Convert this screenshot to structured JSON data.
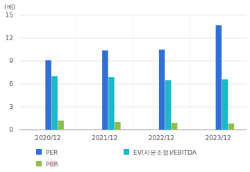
{
  "chart_data": {
    "type": "bar",
    "y_label": "(배)",
    "categories": [
      "2020/12",
      "2021/12",
      "2022/12",
      "2023/12"
    ],
    "series": [
      {
        "name": "PER",
        "color": "#2f6fd6",
        "values": [
          9.1,
          10.4,
          10.5,
          13.7
        ]
      },
      {
        "name": "EV(지분조정)/EBITDA",
        "color": "#1cb8c9",
        "values": [
          7.0,
          6.9,
          6.5,
          6.6
        ]
      },
      {
        "name": "PBR",
        "color": "#8dbd4b",
        "values": [
          1.2,
          1.0,
          0.9,
          0.8
        ]
      }
    ],
    "ylim": [
      0,
      15
    ],
    "yticks": [
      0,
      3,
      6,
      9,
      12,
      15
    ],
    "grid": true,
    "legend": "bottom"
  }
}
